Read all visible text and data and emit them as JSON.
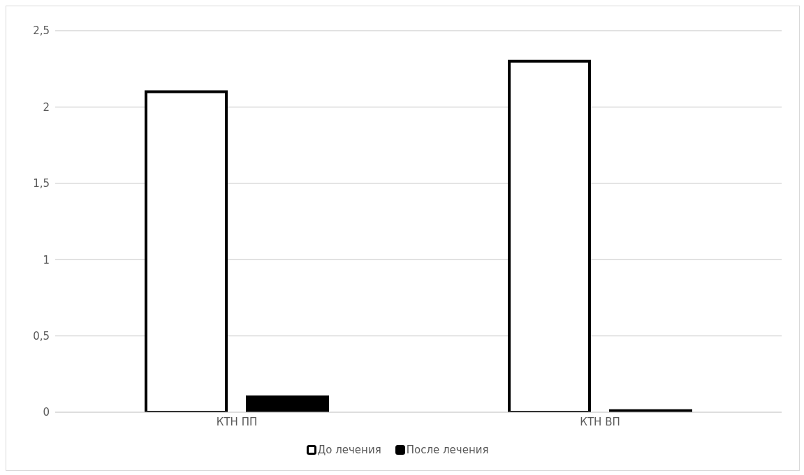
{
  "chart_data": {
    "type": "bar",
    "categories": [
      "КТН ПП",
      "КТН ВП"
    ],
    "series": [
      {
        "name": "До лечения",
        "color": "#ffffff",
        "values": [
          2.1,
          2.3
        ]
      },
      {
        "name": "После лечения",
        "color": "#000000",
        "values": [
          0.1,
          0.01
        ]
      }
    ],
    "ylim": [
      0,
      2.5
    ],
    "yticks": [
      {
        "value": 0,
        "label": "0"
      },
      {
        "value": 0.5,
        "label": "0,5"
      },
      {
        "value": 1,
        "label": "1"
      },
      {
        "value": 1.5,
        "label": "1,5"
      },
      {
        "value": 2,
        "label": "2"
      },
      {
        "value": 2.5,
        "label": "2,5"
      }
    ],
    "grid": "y",
    "legend": "bottom"
  }
}
